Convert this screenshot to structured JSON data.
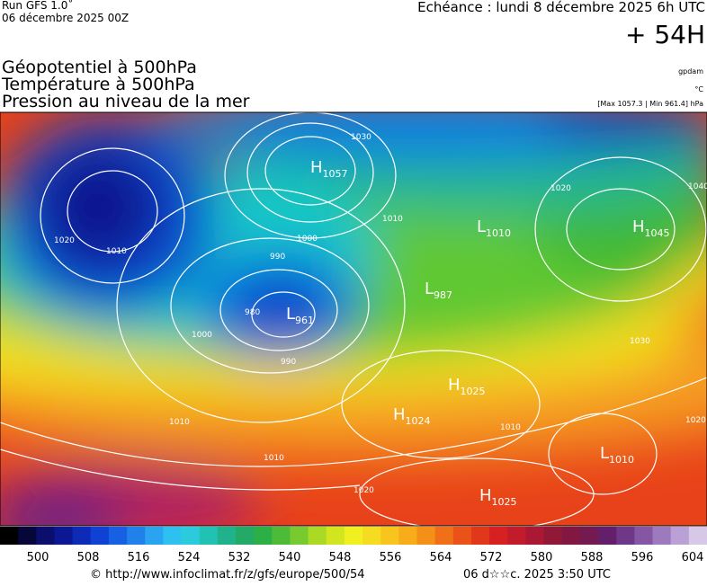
{
  "header": {
    "run": "Run GFS 1.0˚",
    "date": "06 décembre 2025 00Z",
    "echeance": "Echéance : lundi 8 décembre 2025 6h UTC",
    "lead": "+ 54H",
    "titles": [
      "Géopotentiel à 500hPa",
      "Température à 500hPa",
      "Pression au niveau de la mer"
    ],
    "source": "gpdam",
    "unit": "°C",
    "range": "[Max 1057.3 | Min 961.4] hPa"
  },
  "pressure_centers": [
    {
      "type": "H",
      "value": "1057"
    },
    {
      "type": "L",
      "value": "961"
    },
    {
      "type": "L",
      "value": "987"
    },
    {
      "type": "H",
      "value": "1045"
    },
    {
      "type": "L",
      "value": "1010"
    },
    {
      "type": "H",
      "value": "1025"
    },
    {
      "type": "H",
      "value": "1024"
    },
    {
      "type": "L",
      "value": "1010"
    },
    {
      "type": "H",
      "value": "1025"
    }
  ],
  "isobar_labels": [
    "1030",
    "1010",
    "1000",
    "990",
    "980",
    "1000",
    "990",
    "1010",
    "1020",
    "1010",
    "1020",
    "1040",
    "1030",
    "1010",
    "1020",
    "1010",
    "1020"
  ],
  "colorbar": {
    "labels": [
      500,
      508,
      516,
      524,
      532,
      540,
      548,
      556,
      564,
      572,
      580,
      588,
      596,
      604
    ]
  },
  "footer": {
    "url": "© http://www.infoclimat.fr/z/gfs/europe/500/54",
    "time": "06 d☆☆c. 2025  3:50 UTC"
  }
}
